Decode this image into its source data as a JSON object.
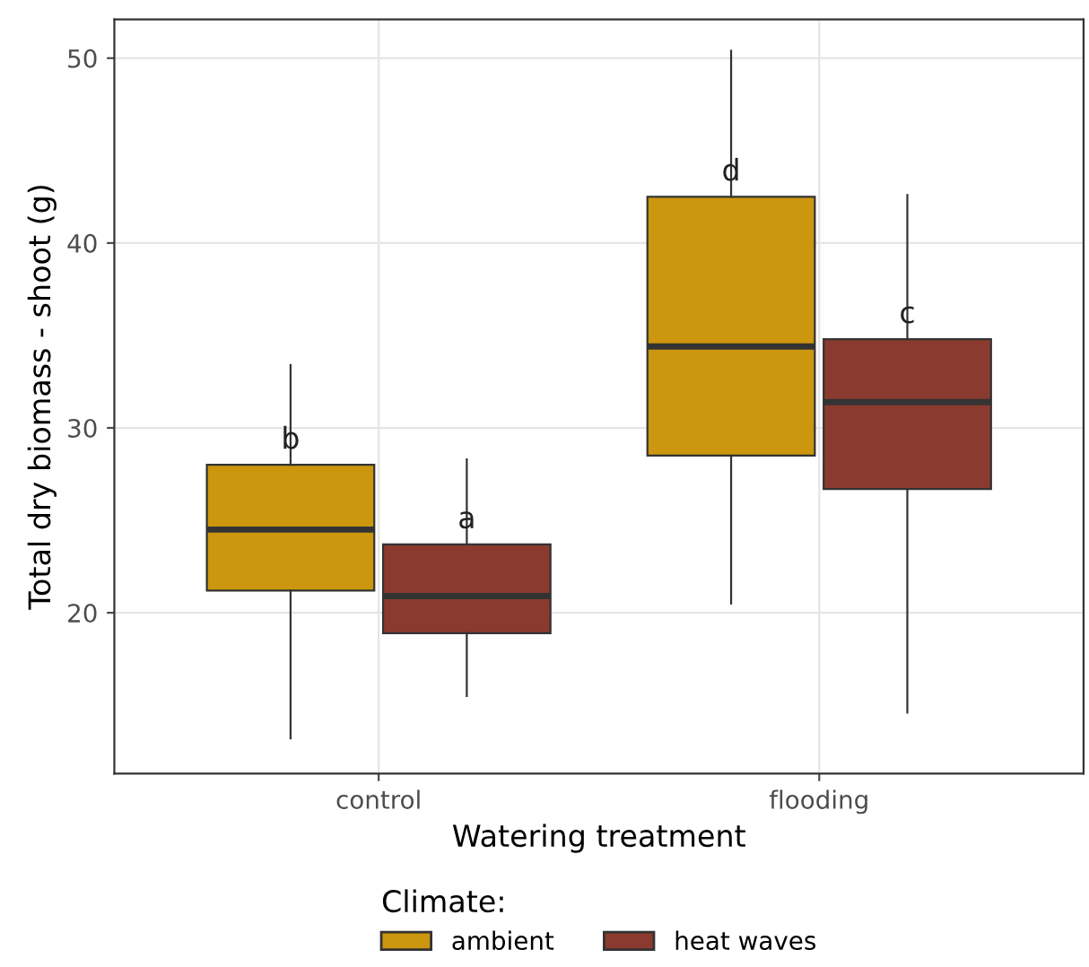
{
  "chart_data": {
    "type": "box",
    "xlabel": "Watering treatment",
    "ylabel": "Total dry biomass - shoot (g)",
    "legend_title": "Climate:",
    "categories": [
      "control",
      "flooding"
    ],
    "series": [
      {
        "name": "ambient",
        "color": "#cc960f",
        "boxes": [
          {
            "low": 13.2,
            "q1": 21.2,
            "median": 24.5,
            "q3": 28.0,
            "high": 33.4
          },
          {
            "low": 20.5,
            "q1": 28.5,
            "median": 34.4,
            "q3": 42.5,
            "high": 50.4
          }
        ]
      },
      {
        "name": "heat waves",
        "color": "#8b3a2f",
        "boxes": [
          {
            "low": 15.5,
            "q1": 18.9,
            "median": 20.9,
            "q3": 23.7,
            "high": 28.3
          },
          {
            "low": 14.6,
            "q1": 26.7,
            "median": 31.4,
            "q3": 34.8,
            "high": 42.6
          }
        ]
      }
    ],
    "annotations": [
      "b",
      "a",
      "d",
      "c"
    ],
    "ylim": [
      11.3,
      52.1
    ],
    "yticks": [
      20,
      30,
      40,
      50
    ],
    "grid": true,
    "legend": "bottom"
  }
}
